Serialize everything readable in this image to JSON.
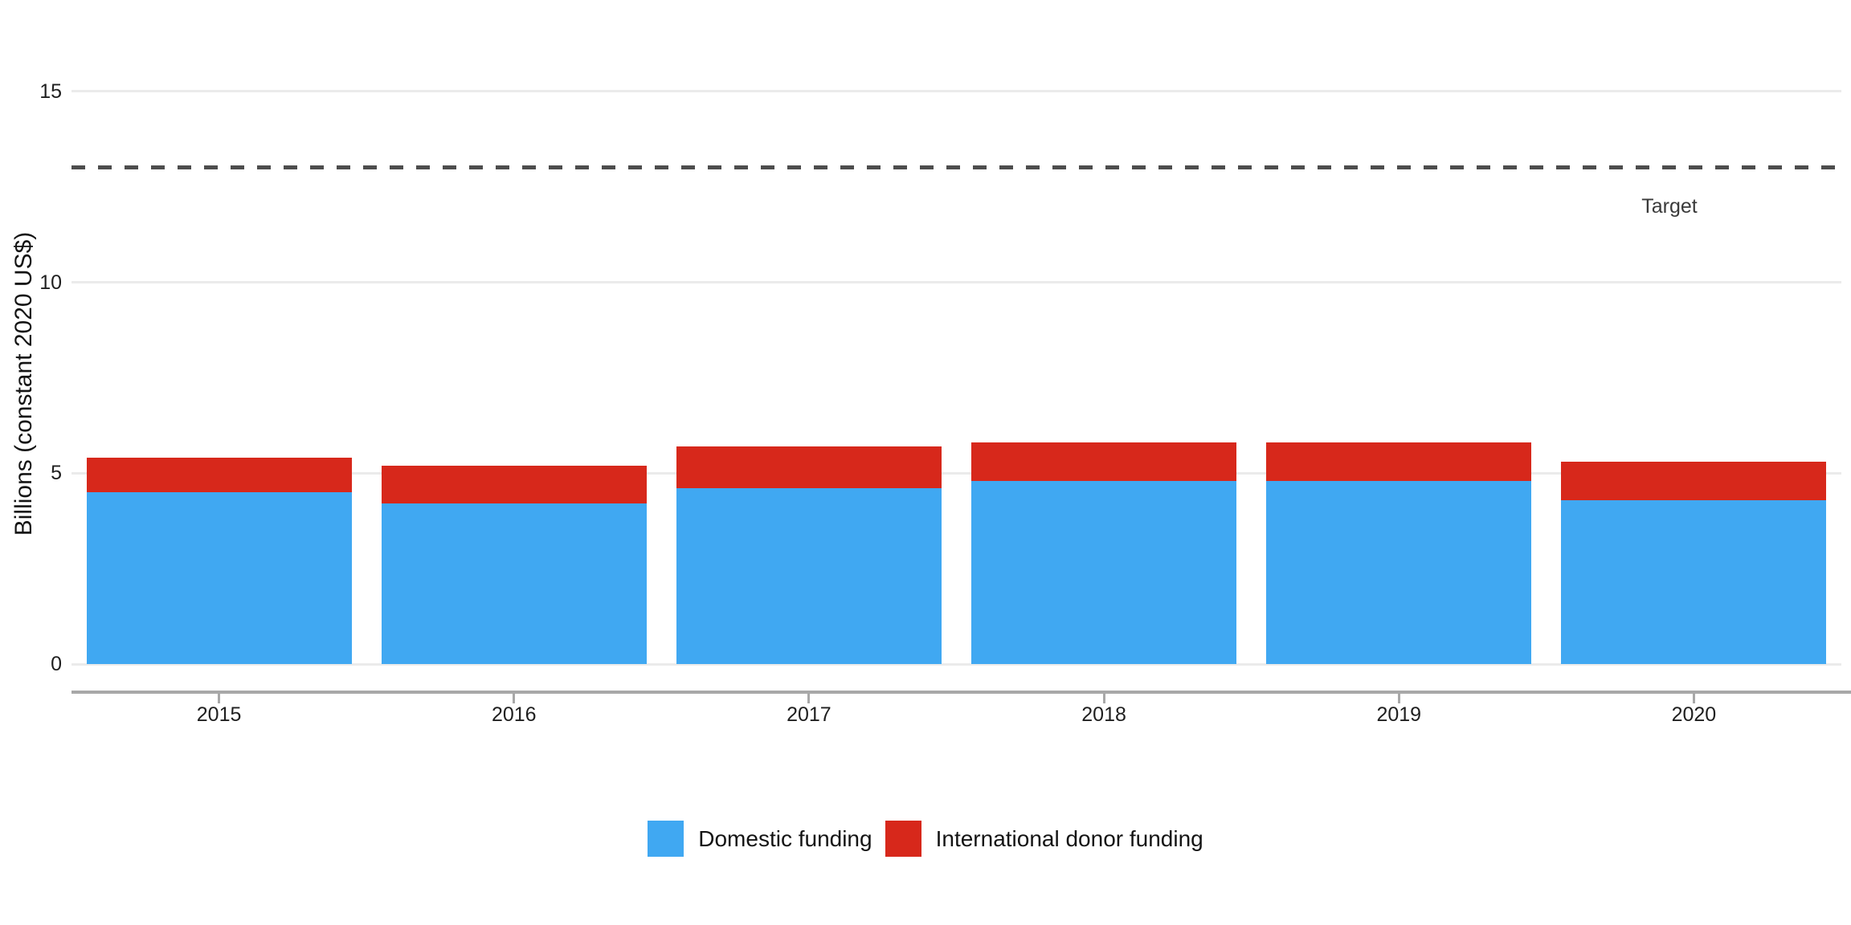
{
  "chart_data": {
    "type": "bar",
    "stacked": true,
    "categories": [
      "2015",
      "2016",
      "2017",
      "2018",
      "2019",
      "2020"
    ],
    "series": [
      {
        "name": "Domestic funding",
        "color": "#40a8f2",
        "values": [
          4.5,
          4.2,
          4.6,
          4.8,
          4.8,
          4.3
        ]
      },
      {
        "name": "International donor funding",
        "color": "#d7281b",
        "values": [
          0.9,
          1.0,
          1.1,
          1.0,
          1.0,
          1.0
        ]
      }
    ],
    "ylabel": "Billions (constant 2020 US$)",
    "yticks": [
      0,
      5,
      10,
      15
    ],
    "ylim": [
      0,
      16.5
    ],
    "target_line": {
      "value": 13,
      "label": "Target",
      "style": "dashed",
      "color": "#4d4d4d"
    },
    "grid": "horizontal-major-only",
    "legend_position": "bottom-center",
    "colors": {
      "gridline": "#ebebeb",
      "axis_line": "#a8a8a8",
      "tick_text": "#1f1f1f"
    }
  }
}
